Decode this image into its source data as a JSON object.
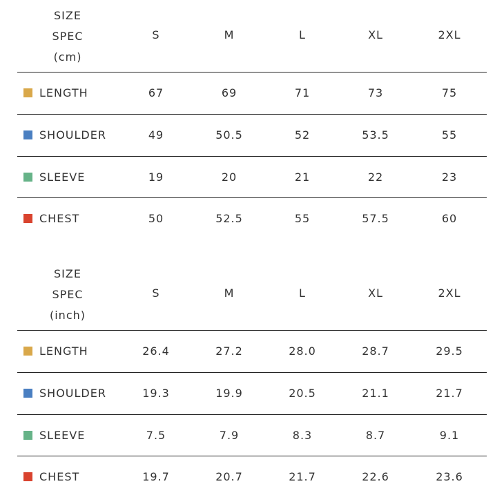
{
  "colors": {
    "length": "#d9a84a",
    "shoulder": "#4a7fc1",
    "sleeve": "#66b388",
    "chest": "#d9432e"
  },
  "cm_table": {
    "spec_line1": "SIZE",
    "spec_line2": "SPEC",
    "spec_unit": "(cm)",
    "sizes": [
      "S",
      "M",
      "L",
      "XL",
      "2XL"
    ],
    "rows": [
      {
        "label": "LENGTH",
        "color_key": "length",
        "values": [
          "67",
          "69",
          "71",
          "73",
          "75"
        ]
      },
      {
        "label": "SHOULDER",
        "color_key": "shoulder",
        "values": [
          "49",
          "50.5",
          "52",
          "53.5",
          "55"
        ]
      },
      {
        "label": "SLEEVE",
        "color_key": "sleeve",
        "values": [
          "19",
          "20",
          "21",
          "22",
          "23"
        ]
      },
      {
        "label": "CHEST",
        "color_key": "chest",
        "values": [
          "50",
          "52.5",
          "55",
          "57.5",
          "60"
        ]
      }
    ]
  },
  "inch_table": {
    "spec_line1": "SIZE",
    "spec_line2": "SPEC",
    "spec_unit": "(inch)",
    "sizes": [
      "S",
      "M",
      "L",
      "XL",
      "2XL"
    ],
    "rows": [
      {
        "label": "LENGTH",
        "color_key": "length",
        "values": [
          "26.4",
          "27.2",
          "28.0",
          "28.7",
          "29.5"
        ]
      },
      {
        "label": "SHOULDER",
        "color_key": "shoulder",
        "values": [
          "19.3",
          "19.9",
          "20.5",
          "21.1",
          "21.7"
        ]
      },
      {
        "label": "SLEEVE",
        "color_key": "sleeve",
        "values": [
          "7.5",
          "7.9",
          "8.3",
          "8.7",
          "9.1"
        ]
      },
      {
        "label": "CHEST",
        "color_key": "chest",
        "values": [
          "19.7",
          "20.7",
          "21.7",
          "22.6",
          "23.6"
        ]
      }
    ]
  }
}
